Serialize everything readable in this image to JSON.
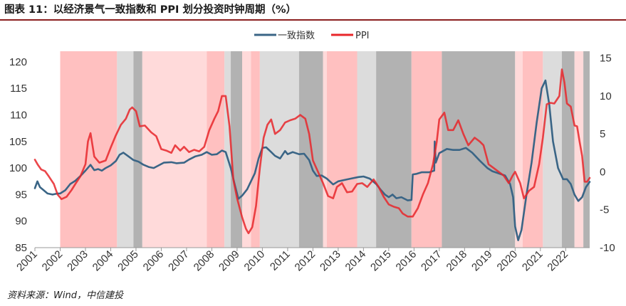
{
  "title": "图表 11：以经济景气一致指数和 PPI 划分投资时钟周期（%）",
  "source": "资料来源：Wind，中信建投",
  "colors": {
    "index_line": "#3a6586",
    "ppi_line": "#e8262a",
    "shade_red_dark": "#ffc0c0",
    "shade_red_light": "#ffdada",
    "shade_gray_light": "#dcdcdc",
    "shade_gray_dark": "#b2b2b2",
    "title_rule": "#8b1f1f"
  },
  "chart_data": {
    "type": "line",
    "x_range": [
      2001,
      2022.95
    ],
    "x_ticks": [
      "2001",
      "2002",
      "2003",
      "2004",
      "2005",
      "2006",
      "2007",
      "2008",
      "2009",
      "2010",
      "2011",
      "2012",
      "2013",
      "2014",
      "2015",
      "2016",
      "2017",
      "2018",
      "2019",
      "2020",
      "2021",
      "2022"
    ],
    "y_left": {
      "ticks": [
        85,
        90,
        95,
        100,
        105,
        110,
        115,
        120
      ],
      "range": [
        85,
        122
      ]
    },
    "y_right": {
      "ticks": [
        -10,
        -5,
        0,
        5,
        10,
        15
      ],
      "range": [
        -10,
        15.9
      ]
    },
    "legend": [
      "一致指数",
      "PPI"
    ],
    "legend_position": "top-center",
    "phases": [
      {
        "start": 2002.0,
        "end": 2004.25,
        "shade": "red_dark"
      },
      {
        "start": 2004.25,
        "end": 2004.9,
        "shade": "gray_light"
      },
      {
        "start": 2004.9,
        "end": 2005.25,
        "shade": "gray_dark"
      },
      {
        "start": 2005.25,
        "end": 2007.8,
        "shade": "red_light"
      },
      {
        "start": 2007.8,
        "end": 2008.5,
        "shade": "red_dark"
      },
      {
        "start": 2008.5,
        "end": 2008.75,
        "shade": "gray_light"
      },
      {
        "start": 2008.75,
        "end": 2009.2,
        "shade": "gray_dark"
      },
      {
        "start": 2009.2,
        "end": 2009.55,
        "shade": "red_light"
      },
      {
        "start": 2009.55,
        "end": 2009.9,
        "shade": "red_dark"
      },
      {
        "start": 2009.9,
        "end": 2011.45,
        "shade": "gray_light"
      },
      {
        "start": 2011.45,
        "end": 2012.4,
        "shade": "gray_dark"
      },
      {
        "start": 2012.4,
        "end": 2012.55,
        "shade": "red_light"
      },
      {
        "start": 2012.55,
        "end": 2013.75,
        "shade": "red_dark"
      },
      {
        "start": 2013.75,
        "end": 2014.5,
        "shade": "gray_light"
      },
      {
        "start": 2014.5,
        "end": 2015.9,
        "shade": "gray_dark"
      },
      {
        "start": 2015.9,
        "end": 2017.1,
        "shade": "red_dark"
      },
      {
        "start": 2017.1,
        "end": 2020.0,
        "shade": "gray_dark"
      },
      {
        "start": 2020.0,
        "end": 2020.3,
        "shade": "red_light"
      },
      {
        "start": 2020.3,
        "end": 2021.1,
        "shade": "red_dark"
      },
      {
        "start": 2021.1,
        "end": 2021.85,
        "shade": "gray_light"
      },
      {
        "start": 2021.85,
        "end": 2022.35,
        "shade": "gray_dark"
      },
      {
        "start": 2022.35,
        "end": 2022.7,
        "shade": "red_light"
      },
      {
        "start": 2022.7,
        "end": 2022.95,
        "shade": "gray_dark"
      }
    ],
    "series": [
      {
        "name": "一致指数",
        "axis": "left",
        "points": [
          [
            2001.0,
            96.2
          ],
          [
            2001.1,
            97.5
          ],
          [
            2001.2,
            96.4
          ],
          [
            2001.35,
            95.8
          ],
          [
            2001.5,
            95.2
          ],
          [
            2001.7,
            95.0
          ],
          [
            2001.9,
            95.2
          ],
          [
            2002.0,
            95.2
          ],
          [
            2002.2,
            95.8
          ],
          [
            2002.4,
            97.0
          ],
          [
            2002.6,
            97.6
          ],
          [
            2002.8,
            98.5
          ],
          [
            2003.0,
            99.5
          ],
          [
            2003.2,
            100.6
          ],
          [
            2003.35,
            99.6
          ],
          [
            2003.5,
            99.8
          ],
          [
            2003.65,
            99.5
          ],
          [
            2003.8,
            100.0
          ],
          [
            2004.0,
            100.5
          ],
          [
            2004.2,
            101.3
          ],
          [
            2004.35,
            102.5
          ],
          [
            2004.5,
            102.9
          ],
          [
            2004.7,
            102.2
          ],
          [
            2004.9,
            101.5
          ],
          [
            2005.1,
            101.2
          ],
          [
            2005.3,
            100.6
          ],
          [
            2005.5,
            100.2
          ],
          [
            2005.7,
            100.0
          ],
          [
            2005.9,
            100.5
          ],
          [
            2006.1,
            101.0
          ],
          [
            2006.4,
            101.1
          ],
          [
            2006.6,
            100.9
          ],
          [
            2006.9,
            101.0
          ],
          [
            2007.1,
            101.6
          ],
          [
            2007.35,
            102.2
          ],
          [
            2007.6,
            102.5
          ],
          [
            2007.8,
            103.0
          ],
          [
            2008.0,
            102.5
          ],
          [
            2008.2,
            102.6
          ],
          [
            2008.4,
            103.3
          ],
          [
            2008.55,
            103.0
          ],
          [
            2008.75,
            100.0
          ],
          [
            2008.9,
            97.0
          ],
          [
            2009.05,
            94.2
          ],
          [
            2009.2,
            94.8
          ],
          [
            2009.4,
            96.0
          ],
          [
            2009.55,
            97.5
          ],
          [
            2009.7,
            99.0
          ],
          [
            2009.85,
            101.8
          ],
          [
            2010.0,
            103.8
          ],
          [
            2010.15,
            103.9
          ],
          [
            2010.35,
            103.0
          ],
          [
            2010.5,
            102.3
          ],
          [
            2010.7,
            101.8
          ],
          [
            2010.9,
            103.2
          ],
          [
            2011.0,
            102.6
          ],
          [
            2011.2,
            103.0
          ],
          [
            2011.45,
            102.6
          ],
          [
            2011.65,
            102.7
          ],
          [
            2011.85,
            101.5
          ],
          [
            2012.0,
            99.5
          ],
          [
            2012.15,
            98.5
          ],
          [
            2012.35,
            98.6
          ],
          [
            2012.55,
            98.0
          ],
          [
            2012.8,
            96.9
          ],
          [
            2013.0,
            97.5
          ],
          [
            2013.3,
            97.8
          ],
          [
            2013.5,
            98.0
          ],
          [
            2013.8,
            98.3
          ],
          [
            2014.0,
            98.4
          ],
          [
            2014.25,
            98.0
          ],
          [
            2014.5,
            97.0
          ],
          [
            2014.7,
            95.8
          ],
          [
            2014.85,
            95.0
          ],
          [
            2015.0,
            94.5
          ],
          [
            2015.15,
            95.0
          ],
          [
            2015.3,
            94.3
          ],
          [
            2015.5,
            94.5
          ],
          [
            2015.75,
            93.9
          ],
          [
            2015.9,
            94.0
          ],
          [
            2015.95,
            98.8
          ],
          [
            2016.1,
            98.9
          ],
          [
            2016.3,
            99.2
          ],
          [
            2016.6,
            99.2
          ],
          [
            2016.8,
            99.5
          ],
          [
            2016.82,
            105.0
          ],
          [
            2016.86,
            101.0
          ],
          [
            2017.0,
            102.8
          ],
          [
            2017.3,
            103.6
          ],
          [
            2017.55,
            103.4
          ],
          [
            2017.8,
            103.4
          ],
          [
            2018.05,
            103.8
          ],
          [
            2018.3,
            102.9
          ],
          [
            2018.6,
            101.4
          ],
          [
            2018.9,
            100.0
          ],
          [
            2019.1,
            99.4
          ],
          [
            2019.35,
            99.0
          ],
          [
            2019.6,
            98.6
          ],
          [
            2019.8,
            97.0
          ],
          [
            2019.92,
            94.5
          ],
          [
            2020.0,
            89.0
          ],
          [
            2020.12,
            86.4
          ],
          [
            2020.25,
            88.3
          ],
          [
            2020.45,
            95.0
          ],
          [
            2020.65,
            101.0
          ],
          [
            2020.85,
            108.5
          ],
          [
            2021.05,
            115.0
          ],
          [
            2021.2,
            116.5
          ],
          [
            2021.35,
            112.0
          ],
          [
            2021.5,
            105.0
          ],
          [
            2021.7,
            100.0
          ],
          [
            2021.9,
            97.9
          ],
          [
            2022.05,
            97.9
          ],
          [
            2022.2,
            97.0
          ],
          [
            2022.35,
            95.0
          ],
          [
            2022.5,
            93.8
          ],
          [
            2022.65,
            94.5
          ],
          [
            2022.8,
            96.4
          ],
          [
            2022.95,
            97.4
          ]
        ]
      },
      {
        "name": "PPI",
        "axis": "right",
        "points": [
          [
            2001.0,
            1.6
          ],
          [
            2001.12,
            0.9
          ],
          [
            2001.25,
            0.3
          ],
          [
            2001.4,
            0.1
          ],
          [
            2001.55,
            -0.6
          ],
          [
            2001.75,
            -1.6
          ],
          [
            2001.9,
            -3.0
          ],
          [
            2002.05,
            -3.6
          ],
          [
            2002.25,
            -3.3
          ],
          [
            2002.45,
            -2.4
          ],
          [
            2002.6,
            -1.6
          ],
          [
            2002.8,
            -0.6
          ],
          [
            2003.0,
            1.0
          ],
          [
            2003.1,
            4.0
          ],
          [
            2003.2,
            5.1
          ],
          [
            2003.35,
            2.0
          ],
          [
            2003.55,
            1.2
          ],
          [
            2003.8,
            1.5
          ],
          [
            2004.0,
            3.2
          ],
          [
            2004.2,
            4.8
          ],
          [
            2004.4,
            6.2
          ],
          [
            2004.6,
            7.0
          ],
          [
            2004.75,
            8.2
          ],
          [
            2004.85,
            8.5
          ],
          [
            2005.0,
            8.0
          ],
          [
            2005.15,
            6.0
          ],
          [
            2005.35,
            6.1
          ],
          [
            2005.6,
            5.2
          ],
          [
            2005.8,
            4.7
          ],
          [
            2006.0,
            3.0
          ],
          [
            2006.2,
            2.8
          ],
          [
            2006.4,
            2.5
          ],
          [
            2006.55,
            3.5
          ],
          [
            2006.75,
            2.8
          ],
          [
            2006.9,
            3.3
          ],
          [
            2007.1,
            2.6
          ],
          [
            2007.3,
            2.9
          ],
          [
            2007.5,
            2.7
          ],
          [
            2007.7,
            3.3
          ],
          [
            2007.9,
            5.5
          ],
          [
            2008.1,
            7.0
          ],
          [
            2008.25,
            8.0
          ],
          [
            2008.4,
            10.0
          ],
          [
            2008.55,
            10.0
          ],
          [
            2008.7,
            6.0
          ],
          [
            2008.85,
            -1.0
          ],
          [
            2009.0,
            -3.5
          ],
          [
            2009.2,
            -6.0
          ],
          [
            2009.35,
            -7.5
          ],
          [
            2009.45,
            -8.1
          ],
          [
            2009.6,
            -7.3
          ],
          [
            2009.75,
            -4.5
          ],
          [
            2009.9,
            0.5
          ],
          [
            2010.05,
            4.5
          ],
          [
            2010.2,
            6.2
          ],
          [
            2010.35,
            6.9
          ],
          [
            2010.5,
            5.0
          ],
          [
            2010.7,
            5.5
          ],
          [
            2010.9,
            6.5
          ],
          [
            2011.1,
            6.8
          ],
          [
            2011.3,
            7.0
          ],
          [
            2011.5,
            7.5
          ],
          [
            2011.7,
            7.0
          ],
          [
            2011.85,
            5.0
          ],
          [
            2012.0,
            1.5
          ],
          [
            2012.2,
            0.0
          ],
          [
            2012.4,
            -1.5
          ],
          [
            2012.6,
            -3.2
          ],
          [
            2012.8,
            -3.5
          ],
          [
            2012.95,
            -2.0
          ],
          [
            2013.15,
            -1.5
          ],
          [
            2013.35,
            -2.7
          ],
          [
            2013.55,
            -2.6
          ],
          [
            2013.75,
            -1.6
          ],
          [
            2013.95,
            -1.5
          ],
          [
            2014.15,
            -2.0
          ],
          [
            2014.4,
            -1.0
          ],
          [
            2014.6,
            -2.0
          ],
          [
            2014.8,
            -3.3
          ],
          [
            2015.0,
            -4.3
          ],
          [
            2015.2,
            -4.6
          ],
          [
            2015.4,
            -4.8
          ],
          [
            2015.55,
            -5.5
          ],
          [
            2015.75,
            -5.9
          ],
          [
            2015.95,
            -5.9
          ],
          [
            2016.15,
            -4.8
          ],
          [
            2016.35,
            -3.0
          ],
          [
            2016.55,
            -1.5
          ],
          [
            2016.75,
            1.0
          ],
          [
            2016.9,
            4.0
          ],
          [
            2017.0,
            6.9
          ],
          [
            2017.2,
            7.8
          ],
          [
            2017.35,
            5.5
          ],
          [
            2017.55,
            5.5
          ],
          [
            2017.75,
            6.8
          ],
          [
            2017.95,
            5.0
          ],
          [
            2018.15,
            3.5
          ],
          [
            2018.4,
            4.5
          ],
          [
            2018.6,
            4.0
          ],
          [
            2018.75,
            3.5
          ],
          [
            2018.95,
            1.0
          ],
          [
            2019.15,
            0.5
          ],
          [
            2019.35,
            0.0
          ],
          [
            2019.55,
            -0.5
          ],
          [
            2019.75,
            -1.5
          ],
          [
            2019.9,
            -0.5
          ],
          [
            2020.0,
            0.0
          ],
          [
            2020.2,
            -1.5
          ],
          [
            2020.35,
            -3.5
          ],
          [
            2020.55,
            -2.5
          ],
          [
            2020.75,
            -2.0
          ],
          [
            2020.95,
            1.0
          ],
          [
            2021.1,
            4.5
          ],
          [
            2021.25,
            8.9
          ],
          [
            2021.4,
            9.1
          ],
          [
            2021.55,
            9.0
          ],
          [
            2021.75,
            10.0
          ],
          [
            2021.85,
            13.5
          ],
          [
            2021.95,
            11.8
          ],
          [
            2022.05,
            9.0
          ],
          [
            2022.2,
            8.6
          ],
          [
            2022.35,
            6.1
          ],
          [
            2022.45,
            6.0
          ],
          [
            2022.55,
            4.0
          ],
          [
            2022.65,
            2.1
          ],
          [
            2022.75,
            -1.3
          ],
          [
            2022.85,
            -1.3
          ],
          [
            2022.95,
            -0.8
          ]
        ]
      }
    ]
  }
}
